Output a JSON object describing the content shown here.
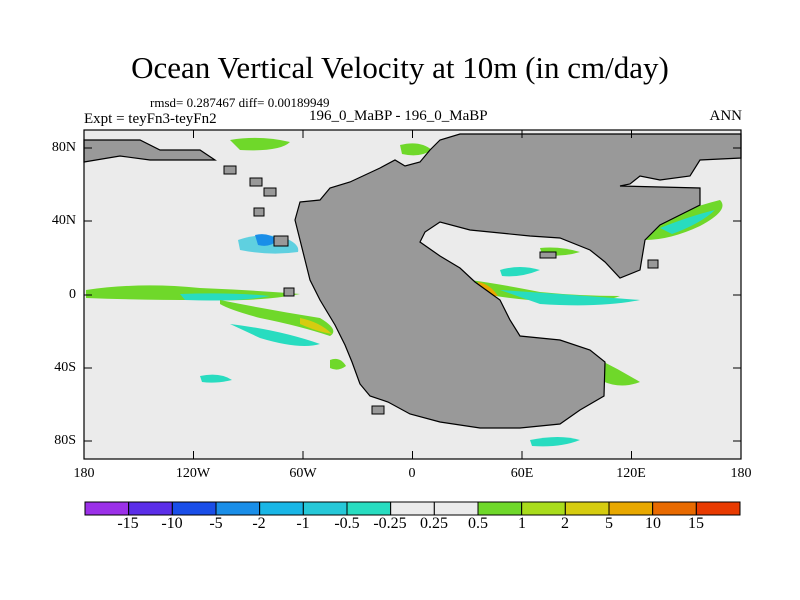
{
  "title": "Ocean Vertical Velocity at 10m (in cm/day)",
  "stats": {
    "text": "rmsd= 0.287467 diff= 0.00189949"
  },
  "experiment": {
    "label": "Expt = teyFn3-teyFn2"
  },
  "case": {
    "label": "196_0_MaBP - 196_0_MaBP"
  },
  "season": {
    "label": "ANN"
  },
  "axes": {
    "lat_labels": [
      "80N",
      "40N",
      "0",
      "40S",
      "80S"
    ],
    "lon_labels": [
      "180",
      "120W",
      "60W",
      "0",
      "60E",
      "120E",
      "180"
    ]
  },
  "colorbar": {
    "labels": [
      "-15",
      "-10",
      "-5",
      "-2",
      "-1",
      "-0.5",
      "-0.25",
      "0.25",
      "0.5",
      "1",
      "2",
      "5",
      "10",
      "15"
    ],
    "colors": [
      "#9b30e8",
      "#5b2ee8",
      "#1a4ee8",
      "#1a8ee8",
      "#19b6e6",
      "#26c8d8",
      "#28dcc0",
      "#ebebeb",
      "#6fd82a",
      "#a9dc1c",
      "#d6cc10",
      "#e8a800",
      "#e86a00",
      "#e83a00"
    ]
  },
  "map_colors": {
    "land": "#999999",
    "ocean": "#ebebeb",
    "border": "#000000"
  }
}
